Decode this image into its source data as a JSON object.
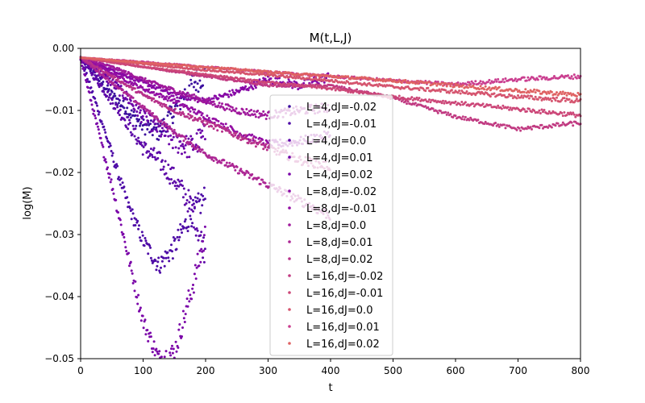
{
  "chart_data": {
    "type": "scatter",
    "title": "M(t,L,J)",
    "xlabel": "t",
    "ylabel": "log(M)",
    "xlim": [
      0,
      800
    ],
    "ylim": [
      -0.05,
      0.0
    ],
    "xticks": [
      "0",
      "100",
      "200",
      "300",
      "400",
      "500",
      "600",
      "700",
      "800"
    ],
    "yticks": [
      "0.00",
      "−0.01",
      "−0.02",
      "−0.03",
      "−0.04",
      "−0.05"
    ],
    "grid": false,
    "legend_position": "center",
    "series": [
      {
        "name": "L=4,dJ=-0.02",
        "color": "#3b0f9e",
        "t_max": 200,
        "x": [
          0,
          25,
          50,
          75,
          100,
          125,
          150,
          175,
          200
        ],
        "y": [
          -0.0015,
          -0.0045,
          -0.0075,
          -0.01,
          -0.0125,
          -0.0135,
          -0.01,
          -0.006,
          -0.004
        ]
      },
      {
        "name": "L=4,dJ=-0.01",
        "color": "#4d0aa6",
        "t_max": 200,
        "x": [
          0,
          25,
          50,
          75,
          100,
          125,
          150,
          175,
          200
        ],
        "y": [
          -0.0015,
          -0.009,
          -0.017,
          -0.025,
          -0.031,
          -0.035,
          -0.032,
          -0.027,
          -0.024
        ]
      },
      {
        "name": "L=4,dJ=0.0",
        "color": "#5c07a8",
        "t_max": 200,
        "x": [
          0,
          25,
          50,
          75,
          100,
          125,
          150,
          175,
          200
        ],
        "y": [
          -0.0015,
          -0.005,
          -0.0085,
          -0.012,
          -0.016,
          -0.018,
          -0.021,
          -0.025,
          -0.033
        ]
      },
      {
        "name": "L=4,dJ=0.01",
        "color": "#6a00a8",
        "t_max": 200,
        "x": [
          0,
          25,
          50,
          75,
          100,
          125,
          150,
          175,
          200
        ],
        "y": [
          -0.0015,
          -0.0035,
          -0.0055,
          -0.008,
          -0.011,
          -0.013,
          -0.015,
          -0.016,
          -0.014
        ]
      },
      {
        "name": "L=4,dJ=0.02",
        "color": "#7a04a8",
        "t_max": 200,
        "x": [
          0,
          25,
          50,
          75,
          100,
          125,
          150,
          175,
          200
        ],
        "y": [
          -0.0015,
          -0.012,
          -0.022,
          -0.033,
          -0.044,
          -0.05,
          -0.049,
          -0.04,
          -0.03
        ]
      },
      {
        "name": "L=8,dJ=-0.02",
        "color": "#8707a6",
        "t_max": 400,
        "x": [
          0,
          50,
          100,
          150,
          200,
          250,
          300,
          350,
          400
        ],
        "y": [
          -0.0015,
          -0.0035,
          -0.0055,
          -0.0075,
          -0.0085,
          -0.007,
          -0.005,
          -0.006,
          -0.0045
        ]
      },
      {
        "name": "L=8,dJ=-0.01",
        "color": "#930ea3",
        "t_max": 400,
        "x": [
          0,
          50,
          100,
          150,
          200,
          250,
          300,
          350,
          400
        ],
        "y": [
          -0.0015,
          -0.004,
          -0.0065,
          -0.0085,
          -0.011,
          -0.0135,
          -0.0155,
          -0.015,
          -0.014
        ]
      },
      {
        "name": "L=8,dJ=0.0",
        "color": "#a01a9c",
        "t_max": 400,
        "x": [
          0,
          50,
          100,
          150,
          200,
          250,
          300,
          350,
          400
        ],
        "y": [
          -0.0015,
          -0.003,
          -0.005,
          -0.0068,
          -0.0085,
          -0.01,
          -0.0108,
          -0.01,
          -0.0095
        ]
      },
      {
        "name": "L=8,dJ=0.01",
        "color": "#ac2694",
        "t_max": 400,
        "x": [
          0,
          50,
          100,
          150,
          200,
          250,
          300,
          350,
          400
        ],
        "y": [
          -0.0015,
          -0.0055,
          -0.0095,
          -0.0135,
          -0.017,
          -0.0195,
          -0.022,
          -0.0245,
          -0.027
        ]
      },
      {
        "name": "L=8,dJ=0.02",
        "color": "#b7318a",
        "t_max": 400,
        "x": [
          0,
          50,
          100,
          150,
          200,
          250,
          300,
          350,
          400
        ],
        "y": [
          -0.0015,
          -0.0045,
          -0.0075,
          -0.01,
          -0.012,
          -0.014,
          -0.016,
          -0.018,
          -0.019
        ]
      },
      {
        "name": "L=16,dJ=-0.02",
        "color": "#c13b82",
        "t_max": 800,
        "x": [
          0,
          100,
          200,
          300,
          400,
          500,
          600,
          700,
          800
        ],
        "y": [
          -0.0015,
          -0.003,
          -0.0045,
          -0.006,
          -0.006,
          -0.008,
          -0.011,
          -0.013,
          -0.012
        ]
      },
      {
        "name": "L=16,dJ=-0.01",
        "color": "#cc4778",
        "t_max": 800,
        "x": [
          0,
          100,
          200,
          300,
          400,
          500,
          600,
          700,
          800
        ],
        "y": [
          -0.0015,
          -0.003,
          -0.0042,
          -0.0055,
          -0.0065,
          -0.0078,
          -0.0088,
          -0.0098,
          -0.0108
        ]
      },
      {
        "name": "L=16,dJ=0.0",
        "color": "#d5546e",
        "t_max": 800,
        "x": [
          0,
          100,
          200,
          300,
          400,
          500,
          600,
          700,
          800
        ],
        "y": [
          -0.0015,
          -0.0025,
          -0.0035,
          -0.0043,
          -0.0052,
          -0.0062,
          -0.007,
          -0.0078,
          -0.0085
        ]
      },
      {
        "name": "L=16,dJ=0.01",
        "color": "#ca3e8f",
        "t_max": 800,
        "x": [
          0,
          100,
          200,
          300,
          400,
          500,
          600,
          700,
          800
        ],
        "y": [
          -0.0015,
          -0.0022,
          -0.003,
          -0.0038,
          -0.0045,
          -0.0052,
          -0.0058,
          -0.005,
          -0.0045
        ]
      },
      {
        "name": "L=16,dJ=0.02",
        "color": "#df6263",
        "t_max": 800,
        "x": [
          0,
          100,
          200,
          300,
          400,
          500,
          600,
          700,
          800
        ],
        "y": [
          -0.0015,
          -0.0023,
          -0.003,
          -0.0038,
          -0.0045,
          -0.0052,
          -0.006,
          -0.0068,
          -0.0075
        ]
      }
    ]
  }
}
